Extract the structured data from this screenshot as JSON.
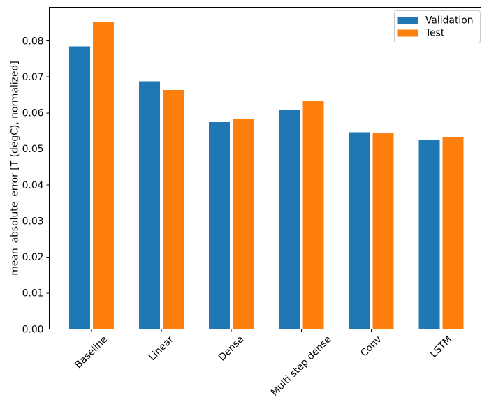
{
  "chart_data": {
    "type": "bar",
    "title": "",
    "xlabel": "",
    "ylabel": "mean_absolute_error [T (degC), normalized]",
    "categories": [
      "Baseline",
      "Linear",
      "Dense",
      "Multi step dense",
      "Conv",
      "LSTM"
    ],
    "series": [
      {
        "name": "Validation",
        "color": "#1f77b4",
        "values": [
          0.0785,
          0.0688,
          0.0574,
          0.0607,
          0.0546,
          0.0524
        ]
      },
      {
        "name": "Test",
        "color": "#ff7f0e",
        "values": [
          0.0852,
          0.0663,
          0.0584,
          0.0634,
          0.0543,
          0.0533
        ]
      }
    ],
    "ylim": [
      0,
      0.0893
    ],
    "yticks": [
      0.0,
      0.01,
      0.02,
      0.03,
      0.04,
      0.05,
      0.06,
      0.07,
      0.08
    ],
    "ytick_labels": [
      "0.00",
      "0.01",
      "0.02",
      "0.03",
      "0.04",
      "0.05",
      "0.06",
      "0.07",
      "0.08"
    ],
    "xtick_rotation": 45,
    "grid": false,
    "legend": {
      "position": "upper right",
      "entries": [
        {
          "label": "Validation",
          "color": "#1f77b4"
        },
        {
          "label": "Test",
          "color": "#ff7f0e"
        }
      ]
    },
    "axis_color": "#000000",
    "background": "#ffffff",
    "legend_border_color": "#cccccc"
  }
}
